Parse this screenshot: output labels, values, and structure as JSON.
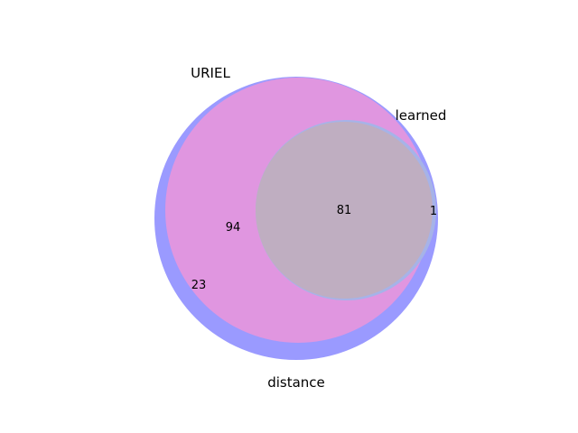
{
  "chart_data": {
    "type": "venn",
    "sets": [
      {
        "name": "URIEL",
        "color": "#e196e0"
      },
      {
        "name": "learned",
        "color": "#bfaec1"
      },
      {
        "name": "distance",
        "color": "#9a9aff"
      }
    ],
    "regions": [
      {
        "label": "81",
        "sets": [
          "URIEL",
          "learned",
          "distance"
        ]
      },
      {
        "label": "94",
        "sets": [
          "URIEL",
          "distance"
        ]
      },
      {
        "label": "23",
        "sets": [
          "distance"
        ]
      },
      {
        "label": "1",
        "sets": [
          "learned",
          "distance"
        ]
      }
    ]
  }
}
